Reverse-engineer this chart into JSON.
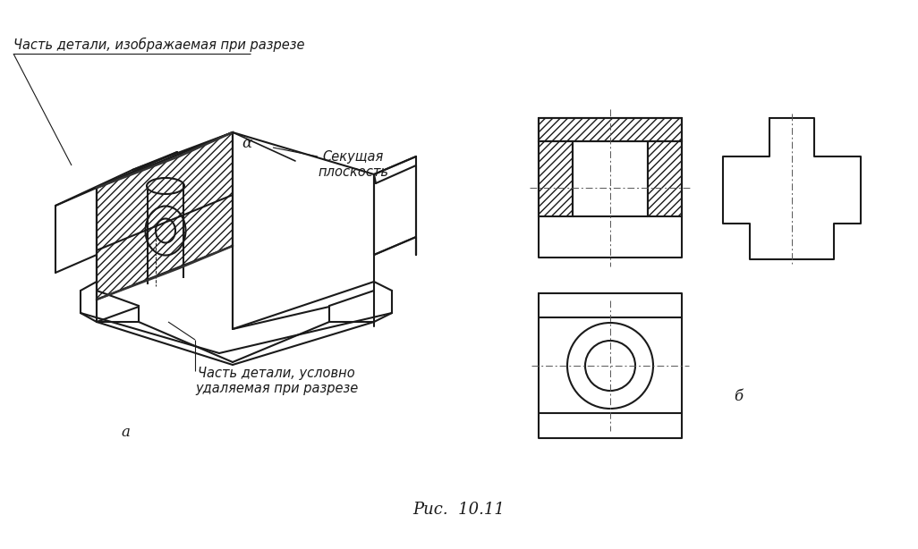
{
  "bg_color": "#ffffff",
  "line_color": "#1a1a1a",
  "hatch_color": "#1a1a1a",
  "label_a": "а",
  "label_b": "б",
  "caption": "Рис.  10.11",
  "text1": "Часть детали, изображаемая при разрезе",
  "text2": "Секущая\nплоскость",
  "text3": "Часть детали, условно\nудаляемая при разрезе",
  "alpha_label": "α",
  "lw": 1.5,
  "lw_thin": 0.7
}
